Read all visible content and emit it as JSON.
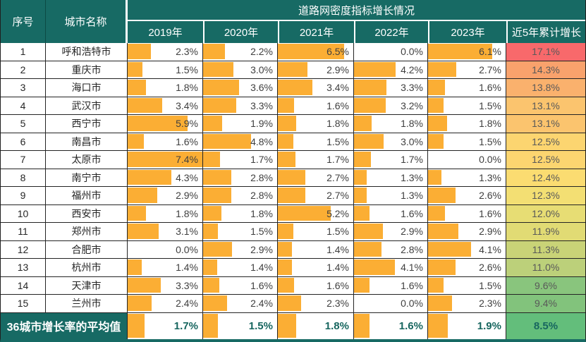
{
  "header": {
    "index_label": "序号",
    "city_label": "城市名称",
    "group_title": "道路网密度指标增长情况",
    "year_labels": [
      "2019年",
      "2020年",
      "2021年",
      "2022年",
      "2023年"
    ],
    "cumulative_label": "近5年累计增长"
  },
  "colors": {
    "header_bg": "#176A64",
    "bar_fill": "#FBAE34",
    "grid_line": "#242424",
    "value_text": "#3F3F3F",
    "cumulative_text": "#595959",
    "summary_value_text": "#17665F",
    "scale_max_color": "#F8696B",
    "scale_mid_color": "#FFEB84",
    "scale_min_color": "#63BE7B"
  },
  "bar_scale_max": 7.4,
  "rows": [
    {
      "no": "1",
      "city": "呼和浩特市",
      "values": [
        "2.3%",
        "2.2%",
        "6.5%",
        "0.0%",
        "6.1%"
      ],
      "cumulative": "17.1%",
      "cum_bg": "#F8696B"
    },
    {
      "no": "2",
      "city": "重庆市",
      "values": [
        "1.5%",
        "3.0%",
        "2.9%",
        "4.2%",
        "2.7%"
      ],
      "cumulative": "14.3%",
      "cum_bg": "#F9A26C"
    },
    {
      "no": "3",
      "city": "海口市",
      "values": [
        "1.8%",
        "3.6%",
        "3.4%",
        "3.3%",
        "1.6%"
      ],
      "cumulative": "13.8%",
      "cum_bg": "#FAB16D"
    },
    {
      "no": "4",
      "city": "武汉市",
      "values": [
        "3.4%",
        "3.3%",
        "1.6%",
        "3.2%",
        "1.5%"
      ],
      "cumulative": "13.1%",
      "cum_bg": "#FBC46E"
    },
    {
      "no": "5",
      "city": "西宁市",
      "values": [
        "5.9%",
        "1.9%",
        "1.8%",
        "1.8%",
        "1.8%"
      ],
      "cumulative": "13.1%",
      "cum_bg": "#FBC46E"
    },
    {
      "no": "6",
      "city": "南昌市",
      "values": [
        "1.6%",
        "4.8%",
        "1.5%",
        "3.0%",
        "1.5%"
      ],
      "cumulative": "12.5%",
      "cum_bg": "#FCD570"
    },
    {
      "no": "7",
      "city": "太原市",
      "values": [
        "7.4%",
        "1.7%",
        "1.7%",
        "1.7%",
        "0.0%"
      ],
      "cumulative": "12.5%",
      "cum_bg": "#FCD570"
    },
    {
      "no": "8",
      "city": "南宁市",
      "values": [
        "4.3%",
        "2.8%",
        "2.7%",
        "1.3%",
        "1.3%"
      ],
      "cumulative": "12.4%",
      "cum_bg": "#FBDC71"
    },
    {
      "no": "9",
      "city": "福州市",
      "values": [
        "2.9%",
        "2.8%",
        "2.7%",
        "1.3%",
        "2.6%"
      ],
      "cumulative": "12.3%",
      "cum_bg": "#F3DF73"
    },
    {
      "no": "10",
      "city": "西安市",
      "values": [
        "1.8%",
        "1.8%",
        "5.2%",
        "1.6%",
        "1.6%"
      ],
      "cumulative": "12.0%",
      "cum_bg": "#E7DD74"
    },
    {
      "no": "11",
      "city": "郑州市",
      "values": [
        "3.1%",
        "1.5%",
        "1.5%",
        "2.9%",
        "2.9%"
      ],
      "cumulative": "11.9%",
      "cum_bg": "#E1DB74"
    },
    {
      "no": "12",
      "city": "合肥市",
      "values": [
        "0.0%",
        "2.9%",
        "1.4%",
        "2.8%",
        "4.1%"
      ],
      "cumulative": "11.3%",
      "cum_bg": "#C9D377"
    },
    {
      "no": "13",
      "city": "杭州市",
      "values": [
        "1.4%",
        "1.4%",
        "1.4%",
        "4.1%",
        "2.6%"
      ],
      "cumulative": "11.0%",
      "cum_bg": "#BCD07A"
    },
    {
      "no": "14",
      "city": "天津市",
      "values": [
        "3.3%",
        "1.6%",
        "1.6%",
        "1.6%",
        "1.5%"
      ],
      "cumulative": "9.6%",
      "cum_bg": "#89C57D"
    },
    {
      "no": "15",
      "city": "兰州市",
      "values": [
        "2.4%",
        "2.4%",
        "2.3%",
        "0.0%",
        "2.3%"
      ],
      "cumulative": "9.4%",
      "cum_bg": "#82C37C"
    }
  ],
  "summary": {
    "label": "36城市增长率的平均值",
    "values": [
      "1.7%",
      "1.5%",
      "1.8%",
      "1.6%",
      "1.9%"
    ],
    "cumulative": "8.5%",
    "cum_bg": "#63BE7B"
  },
  "chart_data": {
    "type": "table",
    "title": "道路网密度指标增长情况",
    "columns": [
      "序号",
      "城市名称",
      "2019年",
      "2020年",
      "2021年",
      "2022年",
      "2023年",
      "近5年累计增长"
    ],
    "rows": [
      [
        "1",
        "呼和浩特市",
        "2.3%",
        "2.2%",
        "6.5%",
        "0.0%",
        "6.1%",
        "17.1%"
      ],
      [
        "2",
        "重庆市",
        "1.5%",
        "3.0%",
        "2.9%",
        "4.2%",
        "2.7%",
        "14.3%"
      ],
      [
        "3",
        "海口市",
        "1.8%",
        "3.6%",
        "3.4%",
        "3.3%",
        "1.6%",
        "13.8%"
      ],
      [
        "4",
        "武汉市",
        "3.4%",
        "3.3%",
        "1.6%",
        "3.2%",
        "1.5%",
        "13.1%"
      ],
      [
        "5",
        "西宁市",
        "5.9%",
        "1.9%",
        "1.8%",
        "1.8%",
        "1.8%",
        "13.1%"
      ],
      [
        "6",
        "南昌市",
        "1.6%",
        "4.8%",
        "1.5%",
        "3.0%",
        "1.5%",
        "12.5%"
      ],
      [
        "7",
        "太原市",
        "7.4%",
        "1.7%",
        "1.7%",
        "1.7%",
        "0.0%",
        "12.5%"
      ],
      [
        "8",
        "南宁市",
        "4.3%",
        "2.8%",
        "2.7%",
        "1.3%",
        "1.3%",
        "12.4%"
      ],
      [
        "9",
        "福州市",
        "2.9%",
        "2.8%",
        "2.7%",
        "1.3%",
        "2.6%",
        "12.3%"
      ],
      [
        "10",
        "西安市",
        "1.8%",
        "1.8%",
        "5.2%",
        "1.6%",
        "1.6%",
        "12.0%"
      ],
      [
        "11",
        "郑州市",
        "3.1%",
        "1.5%",
        "1.5%",
        "2.9%",
        "2.9%",
        "11.9%"
      ],
      [
        "12",
        "合肥市",
        "0.0%",
        "2.9%",
        "1.4%",
        "2.8%",
        "4.1%",
        "11.3%"
      ],
      [
        "13",
        "杭州市",
        "1.4%",
        "1.4%",
        "1.4%",
        "4.1%",
        "2.6%",
        "11.0%"
      ],
      [
        "14",
        "天津市",
        "3.3%",
        "1.6%",
        "1.6%",
        "1.6%",
        "1.5%",
        "9.6%"
      ],
      [
        "15",
        "兰州市",
        "2.4%",
        "2.4%",
        "2.3%",
        "0.0%",
        "2.3%",
        "9.4%"
      ],
      [
        "",
        "36城市增长率的平均值",
        "1.7%",
        "1.5%",
        "1.8%",
        "1.6%",
        "1.9%",
        "8.5%"
      ]
    ],
    "visual_encodings": {
      "year_columns": "orange in-cell data bars scaled 0 to 7.4%",
      "cumulative_column": "red-yellow-green 3-color scale, max 17.1% red, min 8.5% green"
    },
    "legend_position": "none",
    "grid": true
  }
}
